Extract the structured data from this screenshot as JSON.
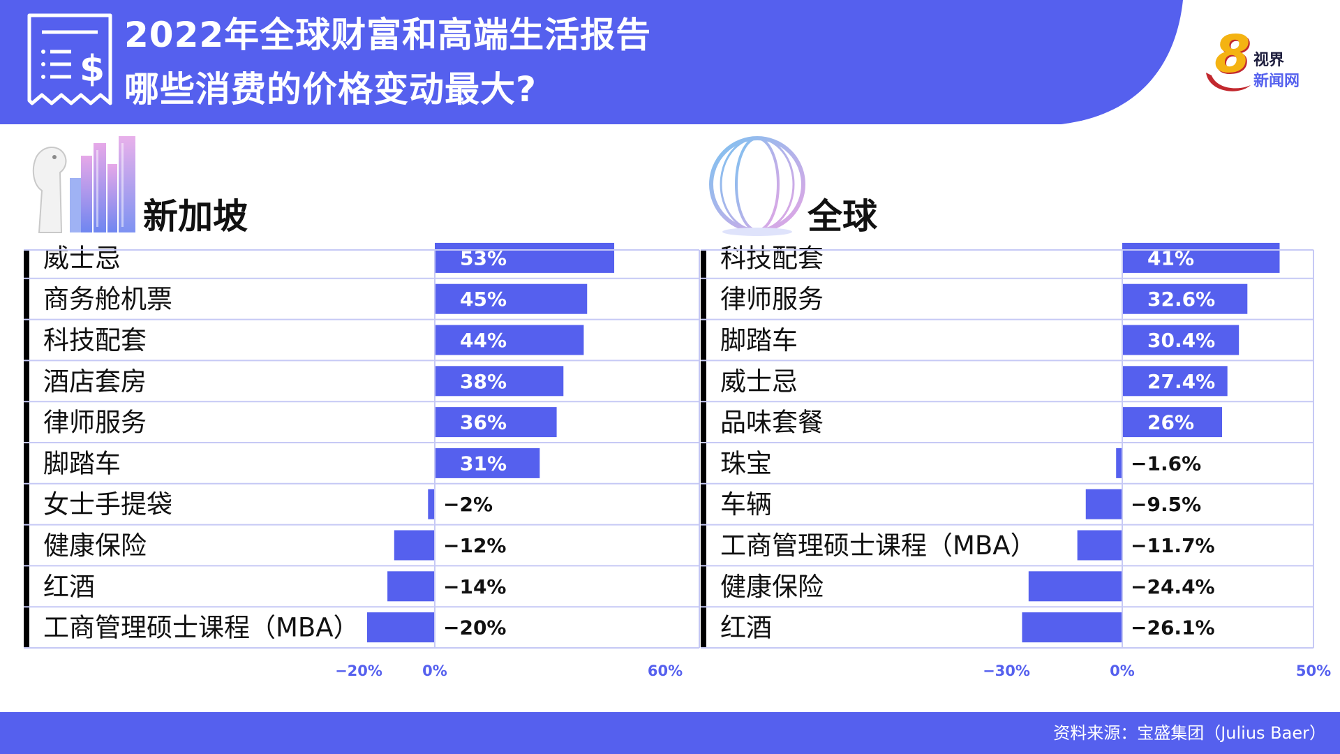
{
  "header": {
    "title_line1": "2022年全球财富和高端生活报告",
    "title_line2": "哪些消费的价格变动最大?",
    "logo_text_top": "视界",
    "logo_text_bottom": "新闻网",
    "logo_numeral": "8"
  },
  "colors": {
    "accent": "#5560EE",
    "text": "#111111",
    "row_line": "#c6c9f5",
    "white": "#FFFFFF"
  },
  "icons": {
    "receipt": "receipt-dollar-icon",
    "singapore": "merlion-skyline-illustration",
    "globe": "globe-illustration",
    "logo": "channel-8-logo"
  },
  "chart_data": [
    {
      "type": "bar",
      "orientation": "horizontal",
      "title": "新加坡",
      "categories": [
        "威士忌",
        "商务舱机票",
        "科技配套",
        "酒店套房",
        "律师服务",
        "脚踏车",
        "女士手提袋",
        "健康保险",
        "红酒",
        "工商管理硕士课程（MBA）"
      ],
      "values": [
        53,
        45,
        44,
        38,
        36,
        31,
        -2,
        -12,
        -14,
        -20
      ],
      "labels": [
        "53%",
        "45%",
        "44%",
        "38%",
        "36%",
        "31%",
        "−2%",
        "−12%",
        "−14%",
        "−20%"
      ],
      "xlim": [
        -20,
        60
      ],
      "xticks": [
        "−20%",
        "0%",
        "60%"
      ],
      "unit": "%"
    },
    {
      "type": "bar",
      "orientation": "horizontal",
      "title": "全球",
      "categories": [
        "科技配套",
        "律师服务",
        "脚踏车",
        "威士忌",
        "品味套餐",
        "珠宝",
        "车辆",
        "工商管理硕士课程（MBA）",
        "健康保险",
        "红酒"
      ],
      "values": [
        41,
        32.6,
        30.4,
        27.4,
        26,
        -1.6,
        -9.5,
        -11.7,
        -24.4,
        -26.1
      ],
      "labels": [
        "41%",
        "32.6%",
        "30.4%",
        "27.4%",
        "26%",
        "−1.6%",
        "−9.5%",
        "−11.7%",
        "−24.4%",
        "−26.1%"
      ],
      "xlim": [
        -30,
        50
      ],
      "xticks": [
        "−30%",
        "0%",
        "50%"
      ],
      "unit": "%"
    }
  ],
  "footer": {
    "source": "资料来源：宝盛集团（Julius Baer）"
  }
}
